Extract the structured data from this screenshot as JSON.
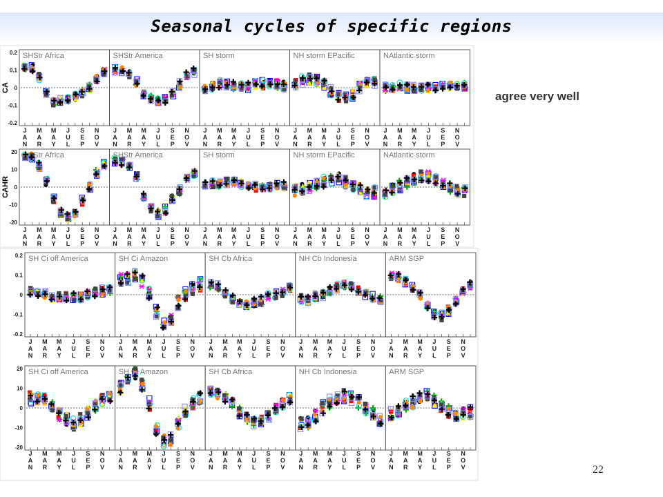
{
  "slide": {
    "title": "Seasonal cycles of specific regions",
    "side_note": "agree very well",
    "slide_number": "22"
  },
  "month_labels": [
    "J\nA\nN",
    "M\nA\nR",
    "M\nA\nY",
    "J\nU\nL",
    "S\nE\nP",
    "N\nO\nV"
  ],
  "marker_colors": [
    "#000000",
    "#ff0000",
    "#0000ff",
    "#00aa00",
    "#ffee00",
    "#ff00ff",
    "#00dddd",
    "#ff8800",
    "#444444",
    "#8888ff"
  ],
  "reference_line": "dotted-zero",
  "chart_data": [
    {
      "type": "scatter",
      "variable": "CA",
      "ylabel": "CA",
      "ylim": [
        -0.2,
        0.2
      ],
      "yticks": [
        "0.2",
        "0.1",
        "0",
        "-0.1",
        "-0.2"
      ],
      "panels": [
        {
          "title": "SHStr Africa",
          "mean": [
            0.12,
            0.11,
            0.06,
            -0.03,
            -0.08,
            -0.07,
            -0.06,
            -0.05,
            -0.03,
            0.0,
            0.05,
            0.09
          ],
          "spread": 0.02
        },
        {
          "title": "SHStr America",
          "mean": [
            0.1,
            0.1,
            0.08,
            0.03,
            -0.03,
            -0.06,
            -0.07,
            -0.07,
            -0.03,
            0.02,
            0.07,
            0.09
          ],
          "spread": 0.02
        },
        {
          "title": "SH storm",
          "mean": [
            0.0,
            0.01,
            0.02,
            0.02,
            0.01,
            0.01,
            0.01,
            0.02,
            0.02,
            0.03,
            0.02,
            0.01
          ],
          "spread": 0.025
        },
        {
          "title": "NH storm EPacific",
          "mean": [
            0.02,
            0.04,
            0.05,
            0.04,
            0.02,
            -0.02,
            -0.05,
            -0.06,
            -0.04,
            0.0,
            0.03,
            0.03
          ],
          "spread": 0.025
        },
        {
          "title": "NAtlantic storm",
          "mean": [
            0.0,
            0.0,
            0.01,
            0.0,
            0.0,
            0.0,
            0.0,
            0.0,
            0.01,
            0.01,
            0.01,
            0.01
          ],
          "spread": 0.02
        }
      ]
    },
    {
      "type": "scatter",
      "variable": "CAHR",
      "ylabel": "CAHR",
      "ylim": [
        -20,
        20
      ],
      "yticks": [
        "20",
        "10",
        "0",
        "-10",
        "-20"
      ],
      "panels": [
        {
          "title": "SHStr Africa",
          "mean": [
            18,
            17,
            12,
            3,
            -7,
            -14,
            -17,
            -15,
            -8,
            0,
            8,
            13
          ],
          "spread": 2
        },
        {
          "title": "SHStr America",
          "mean": [
            15,
            14,
            12,
            6,
            -5,
            -12,
            -15,
            -13,
            -7,
            -2,
            5,
            8
          ],
          "spread": 2
        },
        {
          "title": "SH storm",
          "mean": [
            1,
            2,
            2,
            3,
            3,
            2,
            1,
            0,
            0,
            0,
            1,
            1
          ],
          "spread": 2
        },
        {
          "title": "NH storm EPacific",
          "mean": [
            -2,
            -1,
            0,
            1,
            3,
            4,
            5,
            3,
            1,
            -1,
            -3,
            -3
          ],
          "spread": 3
        },
        {
          "title": "NAtlantic storm",
          "mean": [
            -3,
            -1,
            1,
            3,
            5,
            6,
            6,
            4,
            2,
            0,
            -2,
            -3
          ],
          "spread": 3
        }
      ]
    },
    {
      "type": "scatter",
      "variable": "CA",
      "ylim": [
        -0.2,
        0.2
      ],
      "yticks": [
        "0.2",
        "0.1",
        "0",
        "-0.1",
        "-0.2"
      ],
      "panels": [
        {
          "title": "SH Ci off America",
          "mean": [
            0.02,
            0.01,
            0.0,
            -0.01,
            -0.01,
            -0.01,
            -0.01,
            -0.01,
            0.0,
            0.01,
            0.02,
            0.02
          ],
          "spread": 0.02
        },
        {
          "title": "SH Ci Amazon",
          "mean": [
            0.08,
            0.09,
            0.1,
            0.07,
            0.01,
            -0.09,
            -0.14,
            -0.12,
            -0.04,
            0.0,
            0.03,
            0.05
          ],
          "spread": 0.03
        },
        {
          "title": "SH Cb Africa",
          "mean": [
            0.05,
            0.04,
            0.01,
            -0.02,
            -0.04,
            -0.05,
            -0.04,
            -0.03,
            -0.01,
            0.0,
            0.01,
            0.03
          ],
          "spread": 0.02
        },
        {
          "title": "NH Cb Indonesia",
          "mean": [
            -0.02,
            -0.03,
            -0.01,
            0.0,
            0.02,
            0.04,
            0.05,
            0.04,
            0.02,
            0.0,
            -0.01,
            -0.02
          ],
          "spread": 0.02
        },
        {
          "title": "ARM SGP",
          "mean": [
            0.1,
            0.09,
            0.07,
            0.04,
            0.0,
            -0.05,
            -0.1,
            -0.11,
            -0.08,
            -0.03,
            0.02,
            0.05
          ],
          "spread": 0.02
        }
      ]
    },
    {
      "type": "scatter",
      "variable": "CAHR",
      "ylim": [
        -20,
        20
      ],
      "yticks": [
        "20",
        "10",
        "0",
        "-10",
        "-20"
      ],
      "panels": [
        {
          "title": "SH Ci off America",
          "mean": [
            5,
            5,
            4,
            1,
            -3,
            -6,
            -8,
            -6,
            -2,
            1,
            4,
            6
          ],
          "spread": 3
        },
        {
          "title": "SH Ci Amazon",
          "mean": [
            10,
            15,
            18,
            12,
            2,
            -11,
            -17,
            -16,
            -8,
            -2,
            3,
            5
          ],
          "spread": 3
        },
        {
          "title": "SH Cb Africa",
          "mean": [
            8,
            7,
            5,
            2,
            -2,
            -5,
            -7,
            -6,
            -4,
            -1,
            2,
            5
          ],
          "spread": 2.5
        },
        {
          "title": "NH Cb Indonesia",
          "mean": [
            -8,
            -7,
            -4,
            0,
            3,
            5,
            6,
            5,
            3,
            0,
            -3,
            -6
          ],
          "spread": 3
        },
        {
          "title": "ARM SGP",
          "mean": [
            -3,
            -1,
            1,
            3,
            5,
            6,
            4,
            1,
            -2,
            -4,
            -3,
            -2
          ],
          "spread": 3
        }
      ]
    }
  ]
}
